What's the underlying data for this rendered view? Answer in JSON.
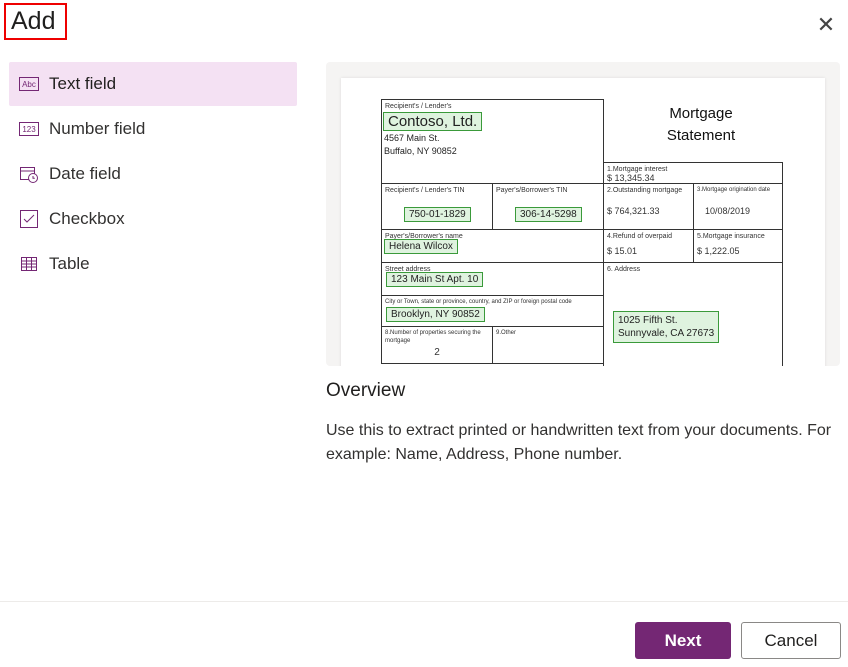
{
  "dialog": {
    "title": "Add",
    "close_icon": "close-icon"
  },
  "accent": "#742774",
  "sidebar": {
    "items": [
      {
        "label": "Text field",
        "icon": "text-field-icon",
        "selected": true
      },
      {
        "label": "Number field",
        "icon": "number-field-icon"
      },
      {
        "label": "Date field",
        "icon": "date-field-icon"
      },
      {
        "label": "Checkbox",
        "icon": "checkbox-icon"
      },
      {
        "label": "Table",
        "icon": "table-icon"
      }
    ]
  },
  "preview": {
    "title_line1": "Mortgage",
    "title_line2": "Statement",
    "recipient_label": "Recipient's / Lender's",
    "recipient_name": "Contoso, Ltd.",
    "recipient_addr1": "4567 Main St.",
    "recipient_addr2": "Buffalo, NY 90852",
    "interest_label": "1.Mortgage interest",
    "interest_value": "$  13,345.34",
    "lender_tin_label": "Recipient's / Lender's TIN",
    "lender_tin": "750-01-1829",
    "payer_tin_label": "Payer's/Borrower's TIN",
    "payer_tin": "306-14-5298",
    "outstanding_label": "2.Outstanding mortgage",
    "outstanding_value": "$  764,321.33",
    "origination_label": "3.Mortgage origination date",
    "origination_value": "10/08/2019",
    "payer_name_label": "Payer's/Borrower's name",
    "payer_name": "Helena Wilcox",
    "refund_label": "4.Refund of overpaid",
    "refund_value": "$  15.01",
    "insurance_label": "5.Mortgage insurance",
    "insurance_value": "$  1,222.05",
    "street_label": "Street address",
    "street_value": "123 Main St Apt. 10",
    "address_label": "6. Address",
    "address_line1": "1025 Fifth St.",
    "address_line2": "Sunnyvale, CA 27673",
    "city_label": "City or Town, state or province, country, and ZIP or foreign postal code",
    "city_value": "Brooklyn, NY 90852",
    "properties_label": "8.Number of properties securing the mortgage",
    "properties_value": "2",
    "other_label": "9.Other"
  },
  "overview": {
    "heading": "Overview",
    "text": "Use this to extract printed or handwritten text from your documents. For example: Name, Address, Phone number."
  },
  "footer": {
    "next_label": "Next",
    "cancel_label": "Cancel"
  }
}
